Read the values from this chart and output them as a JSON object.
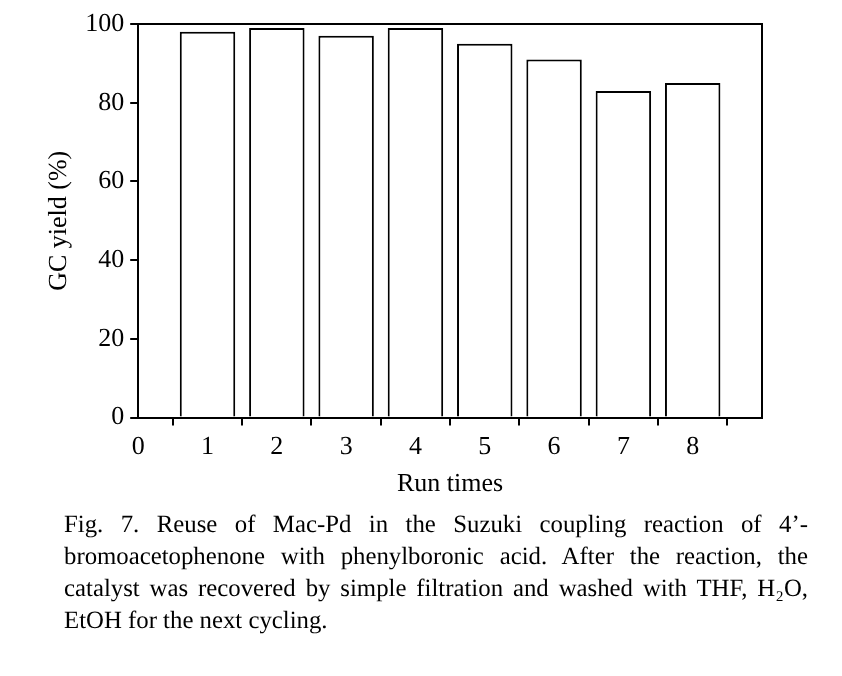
{
  "chart_data": {
    "type": "bar",
    "xlabel": "Run times",
    "ylabel": "GC yield (%)",
    "x": [
      1,
      2,
      3,
      4,
      5,
      6,
      7,
      8
    ],
    "values": [
      98,
      99,
      97,
      99,
      95,
      91,
      83,
      85
    ],
    "color": "#ffffff",
    "xlim": [
      0,
      9
    ],
    "xticks": [
      0,
      1,
      2,
      3,
      4,
      5,
      6,
      7,
      8
    ],
    "ylim": [
      0,
      100
    ],
    "yticks": [
      0,
      20,
      40,
      60,
      80,
      100
    ],
    "grid": false,
    "legend": false,
    "annotations": [
      "Fig. 7. Reuse of Mac-Pd in the Suzuki coupling reaction of 4’-bromoacetophenone with phenylboronic acid. After the reaction, the catalyst was recovered by simple filtration and washed with THF, H₂O, EtOH for the next cycling."
    ]
  }
}
